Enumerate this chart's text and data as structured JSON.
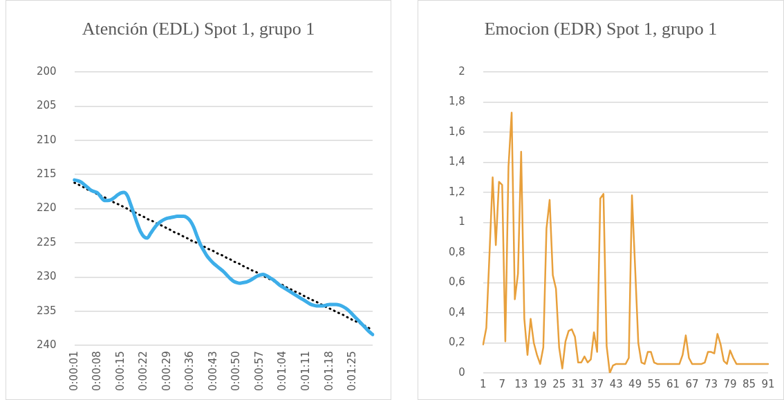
{
  "chart_data": [
    {
      "type": "line",
      "title": "Atención (EDL) Spot 1, grupo 1",
      "categories": [
        "0:00:01",
        null,
        null,
        null,
        null,
        null,
        null,
        "0:00:08",
        null,
        null,
        null,
        null,
        null,
        null,
        "0:00:15",
        null,
        null,
        null,
        null,
        null,
        null,
        "0:00:22",
        null,
        null,
        null,
        null,
        null,
        null,
        "0:00:29",
        null,
        null,
        null,
        null,
        null,
        null,
        "0:00:36",
        null,
        null,
        null,
        null,
        null,
        null,
        "0:00:43",
        null,
        null,
        null,
        null,
        null,
        null,
        "0:00:50",
        null,
        null,
        null,
        null,
        null,
        null,
        "0:00:57",
        null,
        null,
        null,
        null,
        null,
        null,
        "0:01:04",
        null,
        null,
        null,
        null,
        null,
        null,
        "0:01:11",
        null,
        null,
        null,
        null,
        null,
        null,
        "0:01:18",
        null,
        null,
        null,
        null,
        null,
        null,
        "0:01:25",
        null,
        null,
        null,
        null,
        null,
        null
      ],
      "series": [
        {
          "color": "#3daee9",
          "values": [
            215.8,
            215.9,
            216.1,
            216.5,
            216.9,
            217.3,
            217.5,
            217.7,
            218.3,
            218.8,
            218.8,
            218.7,
            218.4,
            218.0,
            217.7,
            217.6,
            218.1,
            219.4,
            220.8,
            222.2,
            223.4,
            224.1,
            224.3,
            223.6,
            222.9,
            222.3,
            221.9,
            221.6,
            221.4,
            221.3,
            221.2,
            221.1,
            221.1,
            221.1,
            221.3,
            221.8,
            222.7,
            224.0,
            225.2,
            226.1,
            226.9,
            227.5,
            228.0,
            228.4,
            228.8,
            229.2,
            229.7,
            230.2,
            230.6,
            230.8,
            230.9,
            230.8,
            230.7,
            230.5,
            230.2,
            229.9,
            229.7,
            229.6,
            229.8,
            230.1,
            230.4,
            230.8,
            231.2,
            231.5,
            231.8,
            232.1,
            232.4,
            232.7,
            233.0,
            233.3,
            233.6,
            233.9,
            234.1,
            234.2,
            234.2,
            234.2,
            234.1,
            234.0,
            234.0,
            234.0,
            234.1,
            234.3,
            234.6,
            235.0,
            235.5,
            236.0,
            236.5,
            237.0,
            237.5,
            238.0,
            238.4
          ]
        },
        {
          "type": "line",
          "color": "#000000",
          "line_style": "dotted",
          "values": [
            216.2,
            216.4,
            216.7,
            216.9,
            217.2,
            217.4,
            217.6,
            217.9,
            218.1,
            218.3,
            218.6,
            218.8,
            219.1,
            219.3,
            219.5,
            219.8,
            220.0,
            220.3,
            220.5,
            220.7,
            221.0,
            221.2,
            221.5,
            221.7,
            221.9,
            222.2,
            222.4,
            222.6,
            222.9,
            223.1,
            223.4,
            223.6,
            223.8,
            224.1,
            224.3,
            224.6,
            224.8,
            225.0,
            225.3,
            225.5,
            225.8,
            226.0,
            226.2,
            226.5,
            226.7,
            226.9,
            227.2,
            227.4,
            227.7,
            227.9,
            228.1,
            228.4,
            228.6,
            228.9,
            229.1,
            229.3,
            229.6,
            229.8,
            230.1,
            230.3,
            230.5,
            230.8,
            231.0,
            231.2,
            231.5,
            231.7,
            232.0,
            232.2,
            232.4,
            232.7,
            232.9,
            233.2,
            233.4,
            233.6,
            233.9,
            234.1,
            234.4,
            234.6,
            234.8,
            235.1,
            235.3,
            235.5,
            235.8,
            236.0,
            236.3,
            236.5,
            236.7,
            237.0,
            237.2,
            237.5,
            237.7
          ]
        }
      ],
      "ylim": [
        240,
        200
      ],
      "yticks": [
        200,
        205,
        210,
        215,
        220,
        225,
        230,
        235,
        240
      ],
      "grid": "y",
      "legend": false
    },
    {
      "type": "line",
      "title": "Emocion (EDR) Spot 1, grupo 1",
      "categories": [
        "1",
        null,
        null,
        null,
        null,
        null,
        "7",
        null,
        null,
        null,
        null,
        null,
        "13",
        null,
        null,
        null,
        null,
        null,
        "19",
        null,
        null,
        null,
        null,
        null,
        "25",
        null,
        null,
        null,
        null,
        null,
        "31",
        null,
        null,
        null,
        null,
        null,
        "37",
        null,
        null,
        null,
        null,
        null,
        "43",
        null,
        null,
        null,
        null,
        null,
        "49",
        null,
        null,
        null,
        null,
        null,
        "55",
        null,
        null,
        null,
        null,
        null,
        "61",
        null,
        null,
        null,
        null,
        null,
        "67",
        null,
        null,
        null,
        null,
        null,
        "73",
        null,
        null,
        null,
        null,
        null,
        "79",
        null,
        null,
        null,
        null,
        null,
        "85",
        null,
        null,
        null,
        null,
        null,
        "91"
      ],
      "series": [
        {
          "color": "#e8a03c",
          "values": [
            0.19,
            0.3,
            0.79,
            1.3,
            0.85,
            1.27,
            1.25,
            0.21,
            1.37,
            1.73,
            0.49,
            0.66,
            1.47,
            0.36,
            0.12,
            0.36,
            0.2,
            0.12,
            0.06,
            0.17,
            0.96,
            1.15,
            0.65,
            0.56,
            0.17,
            0.03,
            0.21,
            0.28,
            0.29,
            0.24,
            0.07,
            0.07,
            0.11,
            0.07,
            0.09,
            0.27,
            0.14,
            1.16,
            1.19,
            0.18,
            0.0,
            0.05,
            0.06,
            0.06,
            0.06,
            0.06,
            0.1,
            1.18,
            0.7,
            0.2,
            0.07,
            0.06,
            0.14,
            0.14,
            0.07,
            0.06,
            0.06,
            0.06,
            0.06,
            0.06,
            0.06,
            0.06,
            0.06,
            0.12,
            0.25,
            0.1,
            0.06,
            0.06,
            0.06,
            0.06,
            0.07,
            0.14,
            0.14,
            0.13,
            0.26,
            0.19,
            0.08,
            0.06,
            0.15,
            0.1,
            0.06,
            0.06,
            0.06,
            0.06,
            0.06,
            0.06,
            0.06,
            0.06,
            0.06,
            0.06,
            0.06
          ]
        }
      ],
      "ylim": [
        0,
        2
      ],
      "yticks": [
        0,
        {
          "value": 0.2,
          "label": "0,2"
        },
        {
          "value": 0.4,
          "label": "0,4"
        },
        {
          "value": 0.6,
          "label": "0,6"
        },
        {
          "value": 0.8,
          "label": "0,8"
        },
        1,
        {
          "value": 1.2,
          "label": "1,2"
        },
        {
          "value": 1.4,
          "label": "1,4"
        },
        {
          "value": 1.6,
          "label": "1,6"
        },
        {
          "value": 1.8,
          "label": "1,8"
        },
        2
      ],
      "grid": "y",
      "legend": false
    }
  ]
}
